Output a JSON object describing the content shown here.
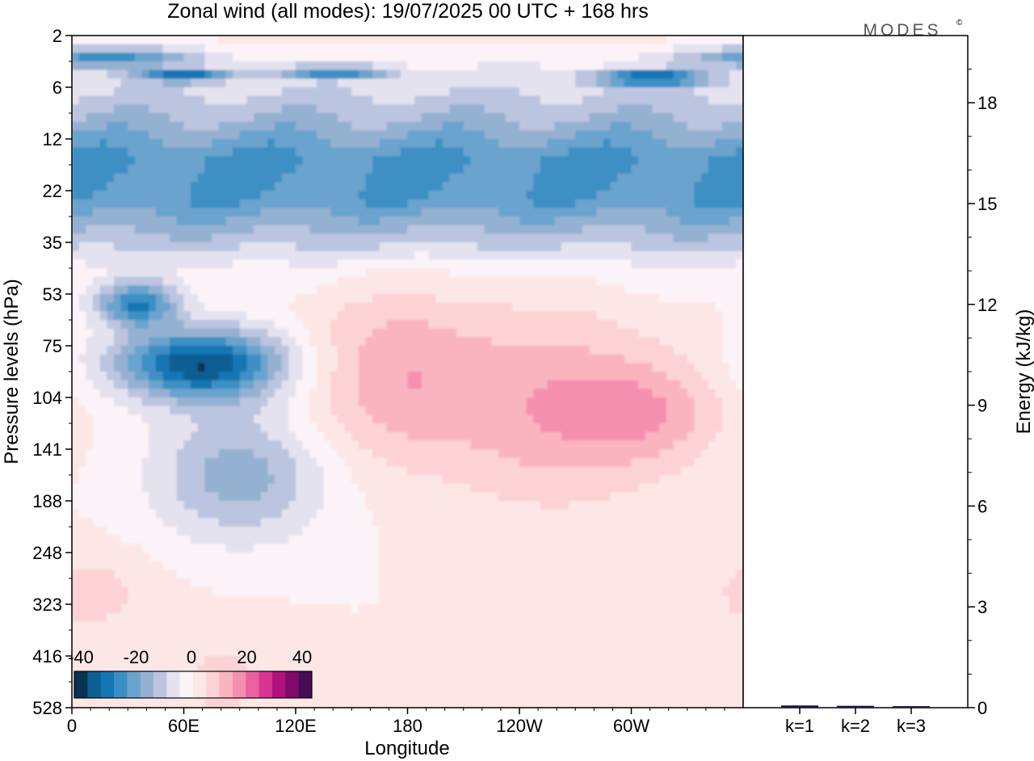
{
  "header": {
    "title": "Zonal wind (all modes):  19/07/2025  00 UTC  + 168 hrs",
    "brand": "MODES"
  },
  "chart_data": [
    {
      "type": "heatmap",
      "title": "Zonal wind (all modes):  19/07/2025  00 UTC  + 168 hrs",
      "xlabel": "Longitude",
      "ylabel": "Pressure levels (hPa)",
      "x_ticks": [
        {
          "label": "0",
          "lon": 0
        },
        {
          "label": "60E",
          "lon": 60
        },
        {
          "label": "120E",
          "lon": 120
        },
        {
          "label": "180",
          "lon": 180
        },
        {
          "label": "120W",
          "lon": 240
        },
        {
          "label": "60W",
          "lon": 300
        }
      ],
      "xlim": [
        0,
        360
      ],
      "y_ticks": [
        "2",
        "6",
        "12",
        "22",
        "35",
        "53",
        "75",
        "104",
        "141",
        "188",
        "248",
        "323",
        "416",
        "528"
      ],
      "colorbar": {
        "labels": [
          "-40",
          "-20",
          "0",
          "20",
          "40"
        ],
        "colors": [
          "#0a3352",
          "#0c5f93",
          "#1675b3",
          "#3c8fc4",
          "#6aa3cd",
          "#94b1d2",
          "#bcc5df",
          "#e4e2ef",
          "#fbf3f7",
          "#fde6e6",
          "#fcd2d4",
          "#f9b4bf",
          "#f58fb0",
          "#ed5fa0",
          "#d63592",
          "#b0117f",
          "#80096a",
          "#4a0b56"
        ]
      },
      "features": [
        {
          "lon": 18,
          "level": 0.42,
          "value": -25,
          "width": 0.55,
          "depth": 0.15
        },
        {
          "lon": 60,
          "level": 0.78,
          "value": -30,
          "width": 0.3,
          "depth": 0.08
        },
        {
          "lon": 140,
          "level": 0.7,
          "value": -28,
          "width": 0.35,
          "depth": 0.08
        },
        {
          "lon": 310,
          "level": 0.82,
          "value": -34,
          "width": 0.35,
          "depth": 0.1
        },
        {
          "lon": 70,
          "level": 6.35,
          "value": -40,
          "width": 0.55,
          "depth": 0.5
        },
        {
          "lon": 35,
          "level": 5.2,
          "value": -30,
          "width": 0.25,
          "depth": 0.3
        },
        {
          "lon": 90,
          "level": 8.5,
          "value": -18,
          "width": 0.55,
          "depth": 0.9
        },
        {
          "lon": 175,
          "level": 6.6,
          "value": 14,
          "width": 0.6,
          "depth": 1.2
        },
        {
          "lon": 260,
          "level": 7.2,
          "value": 14,
          "width": 0.65,
          "depth": 1.3
        },
        {
          "lon": 310,
          "level": 7.3,
          "value": 12,
          "width": 0.45,
          "depth": 0.7
        },
        {
          "lon": 10,
          "level": 10.8,
          "value": 7,
          "width": 0.4,
          "depth": 0.6
        },
        {
          "lon": 80,
          "level": 12.5,
          "value": 6,
          "width": 0.45,
          "depth": 0.8
        }
      ]
    },
    {
      "type": "bar",
      "categories": [
        "k=1",
        "k=2",
        "k=3"
      ],
      "values": [
        0.03,
        0.02,
        0.01
      ],
      "ylabel": "Energy (kJ/kg)",
      "y_ticks": [
        "0",
        "3",
        "6",
        "9",
        "12",
        "15",
        "18"
      ],
      "ylim": [
        0,
        20
      ]
    }
  ]
}
